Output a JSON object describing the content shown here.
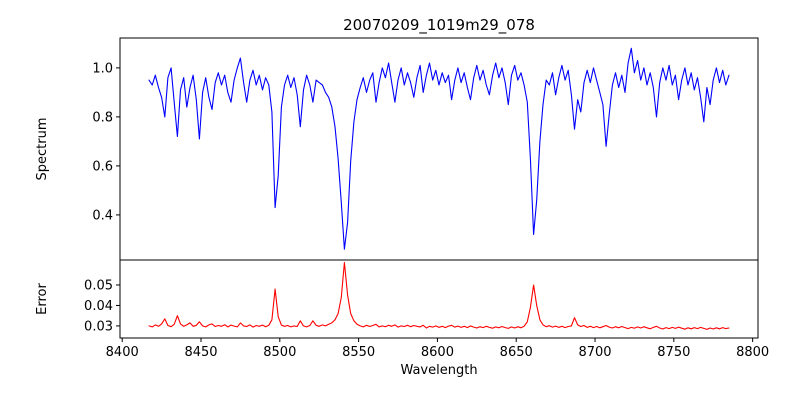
{
  "figure": {
    "title": "20070209_1019m29_078",
    "background": "#ffffff",
    "spine_color": "#000000",
    "text_color": "#000000"
  },
  "chart_data": [
    {
      "type": "line",
      "title": "20070209_1019m29_078",
      "ylabel": "Spectrum",
      "xlabel": "",
      "legend": "none",
      "grid": false,
      "color": "#0000ff",
      "xlim": [
        8398.6,
        8803.4
      ],
      "ylim": [
        0.216,
        1.122
      ],
      "xticks": [
        8400,
        8450,
        8500,
        8550,
        8600,
        8650,
        8700,
        8750,
        8800
      ],
      "show_xtick_labels": false,
      "yticks": [
        0.4,
        0.6,
        0.8,
        1.0
      ],
      "ytick_labels": [
        "0.4",
        "0.6",
        "0.8",
        "1.0"
      ],
      "x_start": 8417,
      "x_step": 2,
      "notable_features": "Ca II triplet absorption lines near 8498 (min 0.43), 8542 (min 0.26), 8661 (min 0.31); noisy continuum near 0.95",
      "values": [
        0.95,
        0.93,
        0.97,
        0.92,
        0.88,
        0.8,
        0.96,
        1.0,
        0.86,
        0.72,
        0.91,
        0.96,
        0.84,
        0.92,
        0.97,
        0.87,
        0.71,
        0.9,
        0.96,
        0.88,
        0.83,
        0.94,
        0.98,
        0.93,
        0.97,
        0.9,
        0.86,
        0.95,
        1.0,
        1.04,
        0.94,
        0.86,
        0.95,
        0.99,
        0.93,
        0.97,
        0.91,
        0.96,
        0.93,
        0.82,
        0.43,
        0.56,
        0.84,
        0.93,
        0.97,
        0.92,
        0.96,
        0.89,
        0.76,
        0.91,
        0.97,
        0.93,
        0.86,
        0.95,
        0.94,
        0.93,
        0.9,
        0.88,
        0.84,
        0.76,
        0.63,
        0.45,
        0.26,
        0.37,
        0.62,
        0.78,
        0.87,
        0.92,
        0.96,
        0.9,
        0.95,
        0.98,
        0.86,
        0.94,
        1.0,
        0.96,
        1.02,
        0.94,
        0.86,
        0.95,
        1.0,
        0.93,
        0.98,
        0.94,
        0.88,
        0.96,
        1.01,
        0.9,
        0.97,
        1.02,
        0.95,
        0.99,
        0.93,
        0.98,
        0.94,
        0.97,
        0.87,
        0.95,
        1.0,
        0.94,
        0.98,
        0.92,
        0.87,
        0.96,
        1.01,
        0.95,
        0.99,
        0.93,
        0.89,
        0.97,
        1.02,
        0.96,
        1.0,
        0.94,
        0.85,
        0.97,
        1.01,
        0.95,
        0.98,
        0.93,
        0.86,
        0.63,
        0.32,
        0.46,
        0.7,
        0.85,
        0.95,
        0.93,
        0.98,
        0.89,
        0.96,
        1.01,
        0.95,
        0.99,
        0.89,
        0.75,
        0.87,
        0.82,
        0.94,
        0.99,
        0.94,
        1.0,
        0.95,
        0.9,
        0.85,
        0.68,
        0.81,
        0.93,
        0.98,
        0.92,
        0.97,
        0.9,
        1.02,
        1.08,
        0.98,
        1.03,
        0.95,
        1.0,
        0.93,
        0.98,
        0.92,
        0.8,
        0.94,
        1.0,
        0.95,
        1.01,
        0.93,
        0.97,
        0.87,
        0.95,
        1.0,
        0.93,
        0.98,
        0.91,
        0.96,
        0.88,
        0.78,
        0.92,
        0.85,
        0.95,
        1.0,
        0.94,
        0.99,
        0.93,
        0.97
      ]
    },
    {
      "type": "line",
      "title": "",
      "ylabel": "Error",
      "xlabel": "Wavelength",
      "legend": "none",
      "grid": false,
      "color": "#ff0000",
      "xlim": [
        8398.6,
        8803.4
      ],
      "ylim": [
        0.0241,
        0.0622
      ],
      "xticks": [
        8400,
        8450,
        8500,
        8550,
        8600,
        8650,
        8700,
        8750,
        8800
      ],
      "xtick_labels": [
        "8400",
        "8450",
        "8500",
        "8550",
        "8600",
        "8650",
        "8700",
        "8750",
        "8800"
      ],
      "show_xtick_labels": true,
      "yticks": [
        0.03,
        0.04,
        0.05
      ],
      "ytick_labels": [
        "0.03",
        "0.04",
        "0.05"
      ],
      "x_start": 8417,
      "x_step": 2,
      "notable_features": "error baseline ~0.030 declining to ~0.029, spikes at 8497 (0.048), 8541 (0.061), 8661 (0.050), 8687 (0.034)",
      "values": [
        0.03,
        0.0295,
        0.0305,
        0.0298,
        0.031,
        0.0335,
        0.0302,
        0.0296,
        0.0308,
        0.035,
        0.031,
        0.0298,
        0.0305,
        0.0315,
        0.0298,
        0.0303,
        0.032,
        0.03,
        0.0295,
        0.0305,
        0.031,
        0.0297,
        0.0302,
        0.0298,
        0.0306,
        0.0295,
        0.0304,
        0.0299,
        0.0295,
        0.0315,
        0.03,
        0.0297,
        0.0305,
        0.0294,
        0.0302,
        0.0298,
        0.0304,
        0.0296,
        0.0303,
        0.033,
        0.048,
        0.0345,
        0.0304,
        0.0298,
        0.0302,
        0.0295,
        0.03,
        0.0297,
        0.0325,
        0.03,
        0.0295,
        0.0302,
        0.0325,
        0.0303,
        0.0298,
        0.0305,
        0.03,
        0.0308,
        0.0315,
        0.033,
        0.036,
        0.044,
        0.061,
        0.045,
        0.036,
        0.0325,
        0.0308,
        0.03,
        0.0295,
        0.0303,
        0.0297,
        0.0302,
        0.0308,
        0.0295,
        0.03,
        0.0296,
        0.0303,
        0.0298,
        0.0305,
        0.0294,
        0.03,
        0.0297,
        0.0303,
        0.0296,
        0.0302,
        0.0298,
        0.0295,
        0.0303,
        0.029,
        0.0298,
        0.0294,
        0.03,
        0.0293,
        0.0298,
        0.0292,
        0.0299,
        0.0303,
        0.0294,
        0.0299,
        0.0293,
        0.0298,
        0.0292,
        0.03,
        0.0294,
        0.029,
        0.0296,
        0.0292,
        0.0298,
        0.0293,
        0.0289,
        0.0295,
        0.0291,
        0.0297,
        0.0292,
        0.0288,
        0.0295,
        0.029,
        0.0296,
        0.0291,
        0.0298,
        0.032,
        0.039,
        0.05,
        0.04,
        0.033,
        0.0305,
        0.0296,
        0.0301,
        0.0294,
        0.0299,
        0.0293,
        0.0298,
        0.0292,
        0.0297,
        0.03,
        0.034,
        0.0305,
        0.0297,
        0.0302,
        0.0293,
        0.0298,
        0.0292,
        0.0297,
        0.0291,
        0.0296,
        0.0302,
        0.0294,
        0.029,
        0.0296,
        0.0291,
        0.0297,
        0.0292,
        0.0287,
        0.0293,
        0.0289,
        0.0295,
        0.029,
        0.0296,
        0.0291,
        0.0286,
        0.0293,
        0.0298,
        0.029,
        0.0285,
        0.0292,
        0.0287,
        0.0293,
        0.0288,
        0.0294,
        0.0289,
        0.0284,
        0.0291,
        0.0286,
        0.0292,
        0.0287,
        0.0293,
        0.0288,
        0.0283,
        0.029,
        0.0285,
        0.0291,
        0.0286,
        0.0292,
        0.0287,
        0.029
      ]
    }
  ]
}
